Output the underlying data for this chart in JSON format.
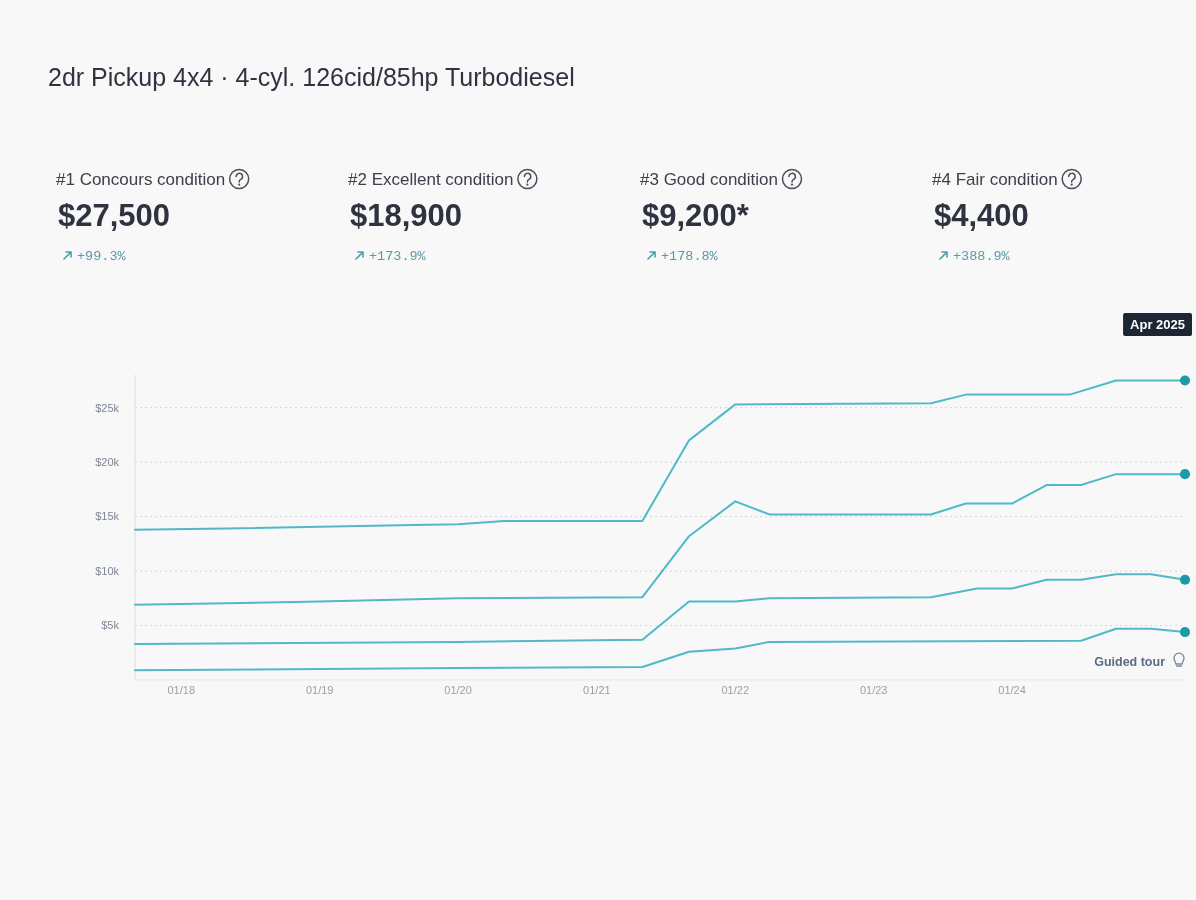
{
  "chart_data": [
    {
      "type": "other",
      "title": "2dr Pickup 4x4 · 4-cyl. 126cid/85hp Turbodiesel",
      "annotations": [
        "#1 Concours condition",
        "$27,500",
        "+99.3%",
        "#2 Excellent condition",
        "$18,900",
        "+173.9%",
        "#3 Good condition",
        "$9,200*",
        "+178.8%",
        "#4 Fair condition",
        "$4,400",
        "+388.9%"
      ]
    },
    {
      "type": "line",
      "series": [
        {
          "color": "#4fb9c7",
          "x": [
            "2017-09",
            "2018-05",
            "2019-08",
            "2020-01",
            "2020-05",
            "2021-05",
            "2021-09",
            "2022-01",
            "2023-06",
            "2023-09",
            "2024-06",
            "2024-10",
            "2025-04"
          ],
          "values": [
            13800,
            13900,
            14200,
            14300,
            14600,
            14600,
            22000,
            25300,
            25400,
            26200,
            26200,
            27500,
            27500
          ]
        },
        {
          "color": "#4fb9c7",
          "x": [
            "2017-09",
            "2019-01",
            "2020-01",
            "2021-05",
            "2021-09",
            "2022-01",
            "2022-04",
            "2023-06",
            "2023-09",
            "2024-01",
            "2024-04",
            "2024-07",
            "2024-10",
            "2025-04"
          ],
          "values": [
            6900,
            7200,
            7500,
            7600,
            13200,
            16400,
            15200,
            15200,
            16200,
            16200,
            17900,
            17900,
            18900,
            18900
          ]
        },
        {
          "color": "#4fb9c7",
          "x": [
            "2017-09",
            "2020-01",
            "2021-05",
            "2021-09",
            "2022-01",
            "2022-04",
            "2023-06",
            "2023-10",
            "2024-01",
            "2024-04",
            "2024-07",
            "2024-10",
            "2025-01",
            "2025-04"
          ],
          "values": [
            3300,
            3500,
            3700,
            7200,
            7200,
            7500,
            7600,
            8400,
            8400,
            9200,
            9200,
            9700,
            9700,
            9200
          ]
        },
        {
          "color": "#4fb9c7",
          "x": [
            "2017-09",
            "2020-01",
            "2021-05",
            "2021-09",
            "2022-01",
            "2022-04",
            "2024-07",
            "2024-10",
            "2025-01",
            "2025-04"
          ],
          "values": [
            900,
            1100,
            1200,
            2600,
            2900,
            3500,
            3600,
            4700,
            4700,
            4400
          ]
        },
        {
          "type": "scatter",
          "color": "#1f9aa5",
          "marker": "circle",
          "x": [
            "2025-04",
            "2025-04",
            "2025-04",
            "2025-04"
          ],
          "values": [
            27500,
            18900,
            9200,
            4400
          ]
        }
      ],
      "xlim": [
        "2017-09",
        "2025-04"
      ],
      "xticks": [
        {
          "value": "2018-01",
          "label": "01/18"
        },
        {
          "value": "2019-01",
          "label": "01/19"
        },
        {
          "value": "2020-01",
          "label": "01/20"
        },
        {
          "value": "2021-01",
          "label": "01/21"
        },
        {
          "value": "2022-01",
          "label": "01/22"
        },
        {
          "value": "2023-01",
          "label": "01/23"
        },
        {
          "value": "2024-01",
          "label": "01/24"
        }
      ],
      "ylim": [
        0,
        28000
      ],
      "yticks": [
        {
          "value": 5000,
          "label": "$5k"
        },
        {
          "value": 10000,
          "label": "$10k"
        },
        {
          "value": 15000,
          "label": "$15k"
        },
        {
          "value": 20000,
          "label": "$20k"
        },
        {
          "value": 25000,
          "label": "$25k"
        }
      ],
      "grid": "y",
      "line_style": "solid",
      "annotations": [
        "Apr 2025",
        "Guided tour"
      ]
    }
  ]
}
